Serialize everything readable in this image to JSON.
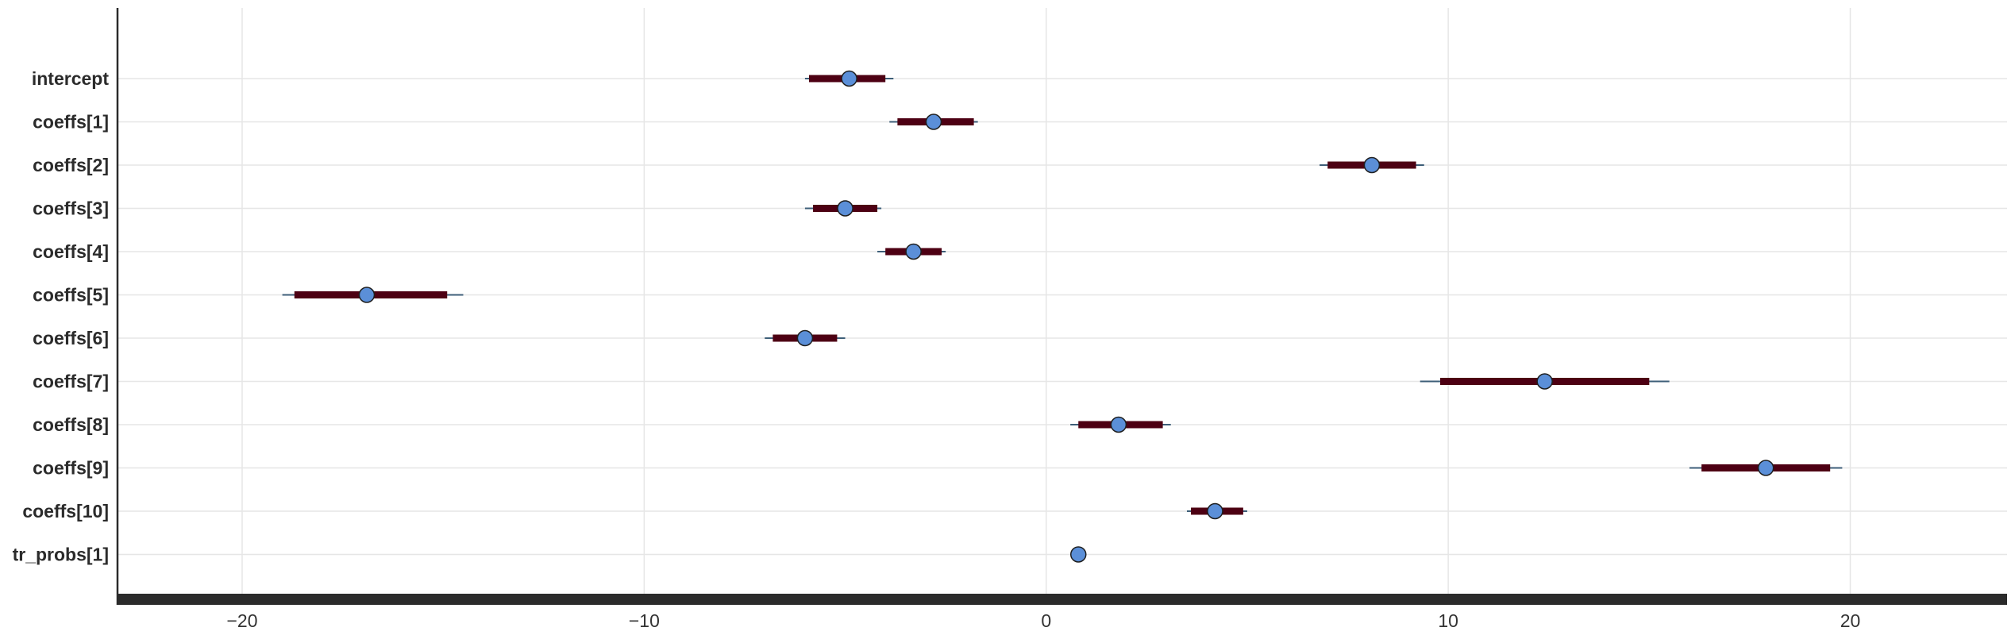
{
  "chart_data": {
    "type": "forest",
    "title": "",
    "xlabel": "",
    "ylabel": "",
    "xlim": [
      -23.1,
      23.9
    ],
    "xticks": [
      -20,
      -10,
      0,
      10,
      20
    ],
    "grid": true,
    "parameters": [
      {
        "name": "intercept",
        "median": -4.9,
        "inner": [
          -5.9,
          -4.0
        ],
        "outer": [
          -6.0,
          -3.8
        ]
      },
      {
        "name": "coeffs[1]",
        "median": -2.8,
        "inner": [
          -3.7,
          -1.8
        ],
        "outer": [
          -3.9,
          -1.7
        ]
      },
      {
        "name": "coeffs[2]",
        "median": 8.1,
        "inner": [
          7.0,
          9.2
        ],
        "outer": [
          6.8,
          9.4
        ]
      },
      {
        "name": "coeffs[3]",
        "median": -5.0,
        "inner": [
          -5.8,
          -4.2
        ],
        "outer": [
          -6.0,
          -4.1
        ]
      },
      {
        "name": "coeffs[4]",
        "median": -3.3,
        "inner": [
          -4.0,
          -2.6
        ],
        "outer": [
          -4.2,
          -2.5
        ]
      },
      {
        "name": "coeffs[5]",
        "median": -16.9,
        "inner": [
          -18.7,
          -14.9
        ],
        "outer": [
          -19.0,
          -14.5
        ]
      },
      {
        "name": "coeffs[6]",
        "median": -6.0,
        "inner": [
          -6.8,
          -5.2
        ],
        "outer": [
          -7.0,
          -5.0
        ]
      },
      {
        "name": "coeffs[7]",
        "median": 12.4,
        "inner": [
          9.8,
          15.0
        ],
        "outer": [
          9.3,
          15.5
        ]
      },
      {
        "name": "coeffs[8]",
        "median": 1.8,
        "inner": [
          0.8,
          2.9
        ],
        "outer": [
          0.6,
          3.1
        ]
      },
      {
        "name": "coeffs[9]",
        "median": 17.9,
        "inner": [
          16.3,
          19.5
        ],
        "outer": [
          16.0,
          19.8
        ]
      },
      {
        "name": "coeffs[10]",
        "median": 4.2,
        "inner": [
          3.6,
          4.9
        ],
        "outer": [
          3.5,
          5.0
        ]
      },
      {
        "name": "tr_probs[1]",
        "median": 0.8,
        "inner": [
          0.75,
          0.85
        ],
        "outer": [
          0.7,
          0.9
        ]
      }
    ]
  }
}
